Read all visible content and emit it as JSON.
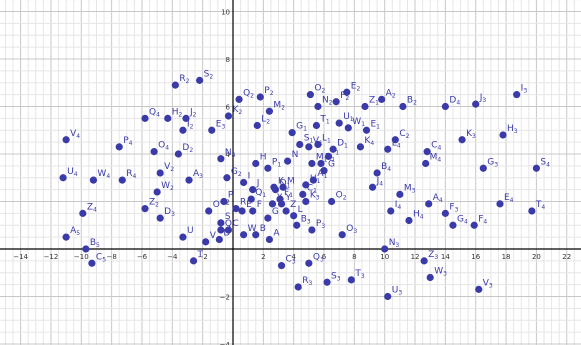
{
  "chart_data": {
    "type": "scatter",
    "xlim": [
      -16,
      23
    ],
    "ylim": [
      -4,
      10.5
    ],
    "grid": true,
    "x_ticks": [
      -14,
      -12,
      -10,
      -8,
      -6,
      -4,
      -2,
      2,
      4,
      6,
      8,
      10,
      12,
      14,
      16,
      18,
      20,
      22
    ],
    "y_ticks": [
      -4,
      -2,
      2,
      4,
      6,
      8,
      10
    ],
    "point_color": "#3a3aa8",
    "points": [
      {
        "name": "V",
        "sub": "4",
        "x": -11,
        "y": 4.6
      },
      {
        "name": "U",
        "sub": "4",
        "x": -11.2,
        "y": 3.0
      },
      {
        "name": "W",
        "sub": "4",
        "x": -9.2,
        "y": 2.9
      },
      {
        "name": "P",
        "sub": "4",
        "x": -7.5,
        "y": 4.3
      },
      {
        "name": "R",
        "sub": "4",
        "x": -7.3,
        "y": 2.9
      },
      {
        "name": "Q",
        "sub": "4",
        "x": -5.8,
        "y": 5.5
      },
      {
        "name": "H",
        "sub": "2",
        "x": -4.3,
        "y": 5.5
      },
      {
        "name": "R",
        "sub": "2",
        "x": -3.8,
        "y": 6.9
      },
      {
        "name": "S",
        "sub": "2",
        "x": -2.2,
        "y": 7.1
      },
      {
        "name": "J",
        "sub": "2",
        "x": -3.1,
        "y": 5.5
      },
      {
        "name": "I",
        "sub": "2",
        "x": -3.3,
        "y": 5.0
      },
      {
        "name": "O",
        "sub": "4",
        "x": -5.2,
        "y": 4.1
      },
      {
        "name": "D",
        "sub": "2",
        "x": -3.6,
        "y": 4.0
      },
      {
        "name": "Z",
        "sub": "4",
        "x": -9.9,
        "y": 1.5
      },
      {
        "name": "A",
        "sub": "5",
        "x": -11.0,
        "y": 0.5
      },
      {
        "name": "B",
        "sub": "5",
        "x": -9.7,
        "y": 0.0
      },
      {
        "name": "C",
        "sub": "5",
        "x": -9.3,
        "y": -0.6
      },
      {
        "name": "W",
        "sub": "2",
        "x": -5.0,
        "y": 2.4
      },
      {
        "name": "V",
        "sub": "2",
        "x": -4.8,
        "y": 3.2
      },
      {
        "name": "A",
        "sub": "3",
        "x": -2.9,
        "y": 2.9
      },
      {
        "name": "Z",
        "sub": "2",
        "x": -5.8,
        "y": 1.7
      },
      {
        "name": "D",
        "sub": "3",
        "x": -4.8,
        "y": 1.3
      },
      {
        "name": "U",
        "sub": "",
        "x": -3.3,
        "y": 0.5
      },
      {
        "name": "T",
        "sub": "",
        "x": -2.6,
        "y": -0.5
      },
      {
        "name": "V",
        "sub": "",
        "x": -1.8,
        "y": 0.3
      },
      {
        "name": "E",
        "sub": "3",
        "x": -1.4,
        "y": 5.0
      },
      {
        "name": "K",
        "sub": "2",
        "x": -0.3,
        "y": 5.6
      },
      {
        "name": "Q",
        "sub": "2",
        "x": 0.4,
        "y": 6.3
      },
      {
        "name": "P",
        "sub": "2",
        "x": 1.8,
        "y": 6.4
      },
      {
        "name": "M",
        "sub": "2",
        "x": 2.4,
        "y": 5.8
      },
      {
        "name": "L",
        "sub": "2",
        "x": 1.6,
        "y": 5.2
      },
      {
        "name": "N",
        "sub": "4",
        "x": -0.8,
        "y": 3.8
      },
      {
        "name": "G",
        "sub": "2",
        "x": -0.4,
        "y": 3.0
      },
      {
        "name": "H",
        "sub": "",
        "x": 1.5,
        "y": 3.6
      },
      {
        "name": "I",
        "sub": "",
        "x": 0.7,
        "y": 2.8
      },
      {
        "name": "J",
        "sub": "",
        "x": 1.3,
        "y": 2.5
      },
      {
        "name": "P",
        "sub": "",
        "x": -0.6,
        "y": 2.0
      },
      {
        "name": "R",
        "sub": "",
        "x": 0.2,
        "y": 1.7
      },
      {
        "name": "E",
        "sub": "",
        "x": 0.6,
        "y": 1.6
      },
      {
        "name": "O",
        "sub": "",
        "x": -1.6,
        "y": 1.6
      },
      {
        "name": "S",
        "sub": "",
        "x": -0.8,
        "y": 1.1
      },
      {
        "name": "Q",
        "sub": "",
        "x": -0.8,
        "y": 0.8
      },
      {
        "name": "C",
        "sub": "",
        "x": -0.3,
        "y": 0.8
      },
      {
        "name": "D",
        "sub": "",
        "x": -0.9,
        "y": 0.4
      },
      {
        "name": "W",
        "sub": "",
        "x": 0.7,
        "y": 0.6
      },
      {
        "name": "F",
        "sub": "",
        "x": 1.3,
        "y": 1.6
      },
      {
        "name": "G",
        "sub": "",
        "x": 2.3,
        "y": 1.3
      },
      {
        "name": "K",
        "sub": "",
        "x": 2.7,
        "y": 2.6
      },
      {
        "name": "M",
        "sub": "",
        "x": 3.3,
        "y": 2.6
      },
      {
        "name": "N",
        "sub": "",
        "x": 3.6,
        "y": 3.7
      },
      {
        "name": "X",
        "sub": "",
        "x": 2.6,
        "y": 1.9
      },
      {
        "name": "Y",
        "sub": "",
        "x": 3.2,
        "y": 1.9
      },
      {
        "name": "Z",
        "sub": "",
        "x": 3.5,
        "y": 1.6
      },
      {
        "name": "L",
        "sub": "",
        "x": 4.0,
        "y": 1.4
      },
      {
        "name": "B",
        "sub": "3",
        "x": 4.2,
        "y": 1.0
      },
      {
        "name": "C",
        "sub": "3",
        "x": 3.2,
        "y": -0.7
      },
      {
        "name": "A",
        "sub": "",
        "x": 2.4,
        "y": 0.4
      },
      {
        "name": "B",
        "sub": "",
        "x": 1.5,
        "y": 0.6
      },
      {
        "name": "G",
        "sub": "1",
        "x": 3.9,
        "y": 4.9
      },
      {
        "name": "O",
        "sub": "2",
        "x": 5.1,
        "y": 6.5
      },
      {
        "name": "N",
        "sub": "2",
        "x": 5.6,
        "y": 6.0
      },
      {
        "name": "F",
        "sub": "2",
        "x": 6.8,
        "y": 6.2
      },
      {
        "name": "E",
        "sub": "2",
        "x": 7.5,
        "y": 6.6
      },
      {
        "name": "Z",
        "sub": "1",
        "x": 8.7,
        "y": 6.0
      },
      {
        "name": "A",
        "sub": "2",
        "x": 9.8,
        "y": 6.3
      },
      {
        "name": "B",
        "sub": "2",
        "x": 11.2,
        "y": 6.0
      },
      {
        "name": "D",
        "sub": "4",
        "x": 14.0,
        "y": 6.0
      },
      {
        "name": "J",
        "sub": "3",
        "x": 16.0,
        "y": 6.1
      },
      {
        "name": "I",
        "sub": "3",
        "x": 18.7,
        "y": 6.5
      },
      {
        "name": "T",
        "sub": "1",
        "x": 5.5,
        "y": 5.2
      },
      {
        "name": "U",
        "sub": "1",
        "x": 7.0,
        "y": 5.3
      },
      {
        "name": "W",
        "sub": "1",
        "x": 7.6,
        "y": 5.1
      },
      {
        "name": "E",
        "sub": "1",
        "x": 8.8,
        "y": 5.0
      },
      {
        "name": "C",
        "sub": "2",
        "x": 10.7,
        "y": 4.6
      },
      {
        "name": "L",
        "sub": "4",
        "x": 10.2,
        "y": 4.2
      },
      {
        "name": "K",
        "sub": "4",
        "x": 8.4,
        "y": 4.3
      },
      {
        "name": "L",
        "sub": "1",
        "x": 5.6,
        "y": 4.4
      },
      {
        "name": "S",
        "sub": "1",
        "x": 4.4,
        "y": 4.4
      },
      {
        "name": "D",
        "sub": "1",
        "x": 6.6,
        "y": 4.2
      },
      {
        "name": "V",
        "sub": "1",
        "x": 5.0,
        "y": 4.3
      },
      {
        "name": "I",
        "sub": "1",
        "x": 6.3,
        "y": 3.9
      },
      {
        "name": "M",
        "sub": "1",
        "x": 5.2,
        "y": 3.6
      },
      {
        "name": "R",
        "sub": "1",
        "x": 5.8,
        "y": 3.6
      },
      {
        "name": "G",
        "sub": "",
        "x": 6.0,
        "y": 3.3
      },
      {
        "name": "A",
        "sub": "1",
        "x": 5.3,
        "y": 2.9
      },
      {
        "name": "H",
        "sub": "1",
        "x": 4.8,
        "y": 2.7
      },
      {
        "name": "P",
        "sub": "1",
        "x": 2.3,
        "y": 3.4
      },
      {
        "name": "Q",
        "sub": "1",
        "x": 1.2,
        "y": 2.1
      },
      {
        "name": "C",
        "sub": "1",
        "x": 4.6,
        "y": 2.3
      },
      {
        "name": "O",
        "sub": "1",
        "x": 2.8,
        "y": 2.5
      },
      {
        "name": "F",
        "sub": "1",
        "x": 3.1,
        "y": 2.1
      },
      {
        "name": "O",
        "sub": "2",
        "x": 6.5,
        "y": 2.0
      },
      {
        "name": "K",
        "sub": "3",
        "x": 4.8,
        "y": 2.0
      },
      {
        "name": "C",
        "sub": "4",
        "x": 12.8,
        "y": 4.1
      },
      {
        "name": "K",
        "sub": "3",
        "x": 15.1,
        "y": 4.6
      },
      {
        "name": "H",
        "sub": "3",
        "x": 17.8,
        "y": 4.8
      },
      {
        "name": "M",
        "sub": "4",
        "x": 12.7,
        "y": 3.6
      },
      {
        "name": "B",
        "sub": "4",
        "x": 9.5,
        "y": 3.2
      },
      {
        "name": "J",
        "sub": "4",
        "x": 9.2,
        "y": 2.6
      },
      {
        "name": "G",
        "sub": "3",
        "x": 16.5,
        "y": 3.4
      },
      {
        "name": "S",
        "sub": "4",
        "x": 20.0,
        "y": 3.4
      },
      {
        "name": "M",
        "sub": "3",
        "x": 11.0,
        "y": 2.3
      },
      {
        "name": "A",
        "sub": "4",
        "x": 12.9,
        "y": 1.9
      },
      {
        "name": "F",
        "sub": "3",
        "x": 14.0,
        "y": 1.5
      },
      {
        "name": "E",
        "sub": "4",
        "x": 17.6,
        "y": 1.9
      },
      {
        "name": "T",
        "sub": "4",
        "x": 19.7,
        "y": 1.6
      },
      {
        "name": "I",
        "sub": "4",
        "x": 10.4,
        "y": 1.6
      },
      {
        "name": "H",
        "sub": "4",
        "x": 11.6,
        "y": 1.2
      },
      {
        "name": "G",
        "sub": "4",
        "x": 14.5,
        "y": 1.0
      },
      {
        "name": "F",
        "sub": "4",
        "x": 15.9,
        "y": 1.0
      },
      {
        "name": "P",
        "sub": "3",
        "x": 5.2,
        "y": 0.8
      },
      {
        "name": "O",
        "sub": "3",
        "x": 7.2,
        "y": 0.6
      },
      {
        "name": "N",
        "sub": "3",
        "x": 10.0,
        "y": 0.0
      },
      {
        "name": "Z",
        "sub": "3",
        "x": 12.6,
        "y": -0.5
      },
      {
        "name": "W",
        "sub": "3",
        "x": 13.0,
        "y": -1.2
      },
      {
        "name": "Q",
        "sub": "3",
        "x": 5.0,
        "y": -0.6
      },
      {
        "name": "R",
        "sub": "3",
        "x": 4.3,
        "y": -1.6
      },
      {
        "name": "S",
        "sub": "3",
        "x": 6.2,
        "y": -1.4
      },
      {
        "name": "T",
        "sub": "3",
        "x": 7.8,
        "y": -1.3
      },
      {
        "name": "U",
        "sub": "3",
        "x": 10.2,
        "y": -2.0
      },
      {
        "name": "V",
        "sub": "3",
        "x": 16.2,
        "y": -1.7
      }
    ]
  }
}
